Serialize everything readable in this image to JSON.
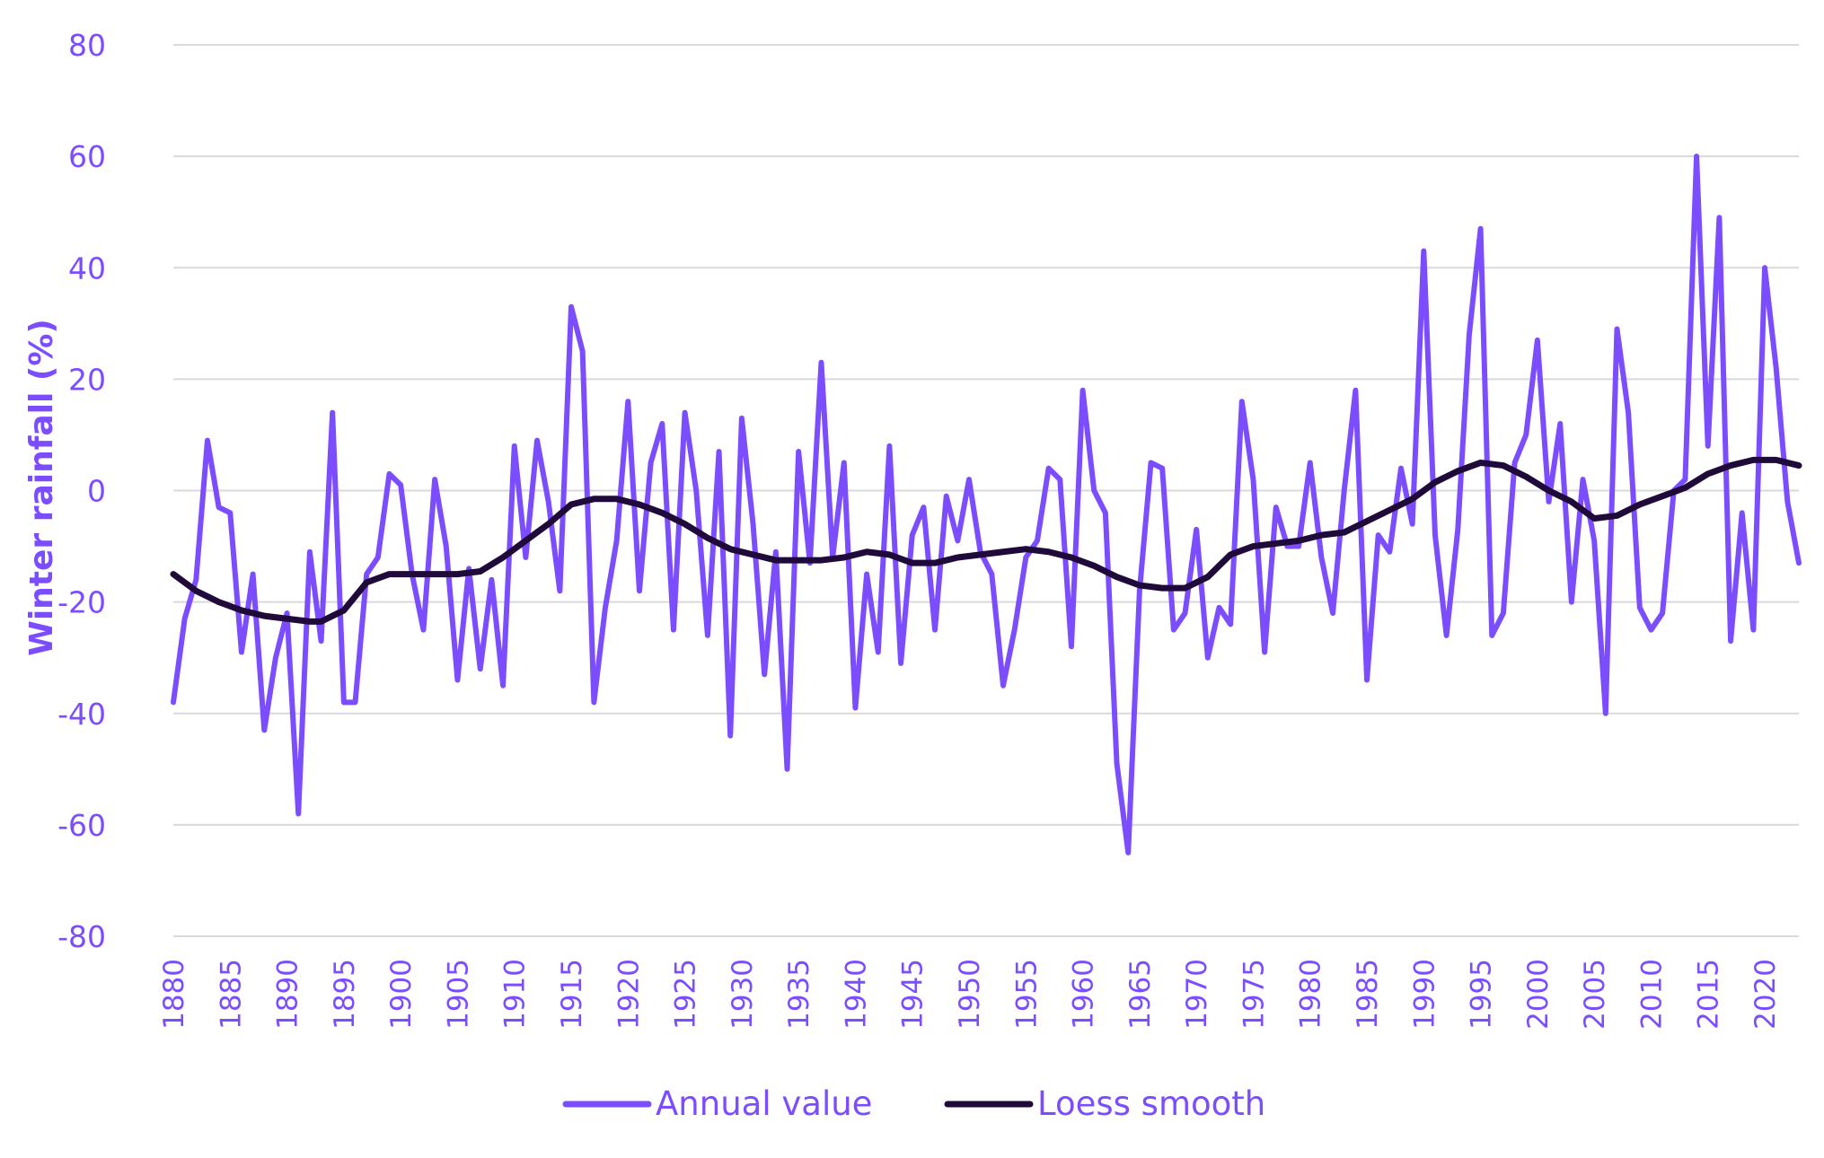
{
  "colors": {
    "annual": "#7b4dff",
    "loess": "#1f0a3a",
    "axis_text": "#7b4dff",
    "grid": "#d9d9d9"
  },
  "chart_data": {
    "type": "line",
    "title": "",
    "xlabel": "",
    "ylabel": "Winter rainfall (%)",
    "xlim": [
      1880,
      2023
    ],
    "ylim": [
      -80,
      80
    ],
    "y_ticks": [
      80,
      60,
      40,
      20,
      0,
      -20,
      -40,
      -60,
      -80
    ],
    "x_ticks": [
      1880,
      1885,
      1890,
      1895,
      1900,
      1905,
      1910,
      1915,
      1920,
      1925,
      1930,
      1935,
      1940,
      1945,
      1950,
      1955,
      1960,
      1965,
      1970,
      1975,
      1980,
      1985,
      1990,
      1995,
      2000,
      2005,
      2010,
      2015,
      2020
    ],
    "grid": true,
    "legend_position": "bottom",
    "series": [
      {
        "name": "Annual value",
        "color_key": "annual",
        "x": [
          1880,
          1881,
          1882,
          1883,
          1884,
          1885,
          1886,
          1887,
          1888,
          1889,
          1890,
          1891,
          1892,
          1893,
          1894,
          1895,
          1896,
          1897,
          1898,
          1899,
          1900,
          1901,
          1902,
          1903,
          1904,
          1905,
          1906,
          1907,
          1908,
          1909,
          1910,
          1911,
          1912,
          1913,
          1914,
          1915,
          1916,
          1917,
          1918,
          1919,
          1920,
          1921,
          1922,
          1923,
          1924,
          1925,
          1926,
          1927,
          1928,
          1929,
          1930,
          1931,
          1932,
          1933,
          1934,
          1935,
          1936,
          1937,
          1938,
          1939,
          1940,
          1941,
          1942,
          1943,
          1944,
          1945,
          1946,
          1947,
          1948,
          1949,
          1950,
          1951,
          1952,
          1953,
          1954,
          1955,
          1956,
          1957,
          1958,
          1959,
          1960,
          1961,
          1962,
          1963,
          1964,
          1965,
          1966,
          1967,
          1968,
          1969,
          1970,
          1971,
          1972,
          1973,
          1974,
          1975,
          1976,
          1977,
          1978,
          1979,
          1980,
          1981,
          1982,
          1983,
          1984,
          1985,
          1986,
          1987,
          1988,
          1989,
          1990,
          1991,
          1992,
          1993,
          1994,
          1995,
          1996,
          1997,
          1998,
          1999,
          2000,
          2001,
          2002,
          2003,
          2004,
          2005,
          2006,
          2007,
          2008,
          2009,
          2010,
          2011,
          2012,
          2013,
          2014,
          2015,
          2016,
          2017,
          2018,
          2019,
          2020,
          2021,
          2022,
          2023
        ],
        "y": [
          -38,
          -23,
          -16,
          9,
          -3,
          -4,
          -29,
          -15,
          -43,
          -30,
          -22,
          -58,
          -11,
          -27,
          14,
          -38,
          -38,
          -15,
          -12,
          3,
          1,
          -15,
          -25,
          2,
          -10,
          -34,
          -14,
          -32,
          -16,
          -35,
          8,
          -12,
          9,
          -2,
          -18,
          33,
          25,
          -38,
          -21,
          -9,
          16,
          -18,
          5,
          12,
          -25,
          14,
          0,
          -26,
          7,
          -44,
          13,
          -6,
          -33,
          -11,
          -50,
          7,
          -13,
          23,
          -12,
          5,
          -39,
          -15,
          -29,
          8,
          -31,
          -8,
          -3,
          -25,
          -1,
          -9,
          2,
          -11,
          -15,
          -35,
          -25,
          -12,
          -9,
          4,
          2,
          -28,
          18,
          0,
          -4,
          -49,
          -65,
          -18,
          5,
          4,
          -25,
          -22,
          -7,
          -30,
          -21,
          -24,
          16,
          2,
          -29,
          -3,
          -10,
          -10,
          5,
          -12,
          -22,
          0,
          18,
          -34,
          -8,
          -11,
          4,
          -6,
          43,
          -8,
          -26,
          -7,
          28,
          47,
          -26,
          -22,
          5,
          10,
          27,
          -2,
          12,
          -20,
          2,
          -9,
          -40,
          29,
          14,
          -21,
          -25,
          -22,
          0,
          2,
          60,
          8,
          49,
          -27,
          -4,
          -25,
          40,
          22,
          -2,
          -13
        ]
      },
      {
        "name": "Loess smooth",
        "color_key": "loess",
        "x": [
          1880,
          1882,
          1884,
          1886,
          1888,
          1890,
          1892,
          1893,
          1895,
          1897,
          1899,
          1901,
          1903,
          1905,
          1907,
          1909,
          1911,
          1913,
          1915,
          1917,
          1919,
          1921,
          1923,
          1925,
          1927,
          1929,
          1931,
          1933,
          1935,
          1937,
          1939,
          1941,
          1943,
          1945,
          1947,
          1949,
          1951,
          1953,
          1955,
          1957,
          1959,
          1961,
          1963,
          1965,
          1967,
          1969,
          1971,
          1973,
          1975,
          1977,
          1979,
          1981,
          1983,
          1985,
          1987,
          1989,
          1991,
          1993,
          1995,
          1997,
          1999,
          2001,
          2003,
          2005,
          2007,
          2009,
          2011,
          2013,
          2015,
          2017,
          2019,
          2021,
          2023
        ],
        "y": [
          -15,
          -18,
          -20,
          -21.5,
          -22.5,
          -23,
          -23.5,
          -23.5,
          -21.5,
          -16.5,
          -15,
          -15,
          -15,
          -15,
          -14.5,
          -12,
          -9,
          -6,
          -2.5,
          -1.5,
          -1.5,
          -2.5,
          -4,
          -6,
          -8.5,
          -10.5,
          -11.5,
          -12.5,
          -12.5,
          -12.5,
          -12,
          -11,
          -11.5,
          -13,
          -13,
          -12,
          -11.5,
          -11,
          -10.5,
          -11,
          -12,
          -13.5,
          -15.5,
          -17,
          -17.5,
          -17.5,
          -15.5,
          -11.5,
          -10,
          -9.5,
          -9,
          -8,
          -7.5,
          -5.5,
          -3.5,
          -1.5,
          1.5,
          3.5,
          5,
          4.5,
          2.5,
          0,
          -2,
          -5,
          -4.5,
          -2.5,
          -1,
          0.5,
          3,
          4.5,
          5.5,
          5.5,
          4.5
        ]
      }
    ]
  }
}
